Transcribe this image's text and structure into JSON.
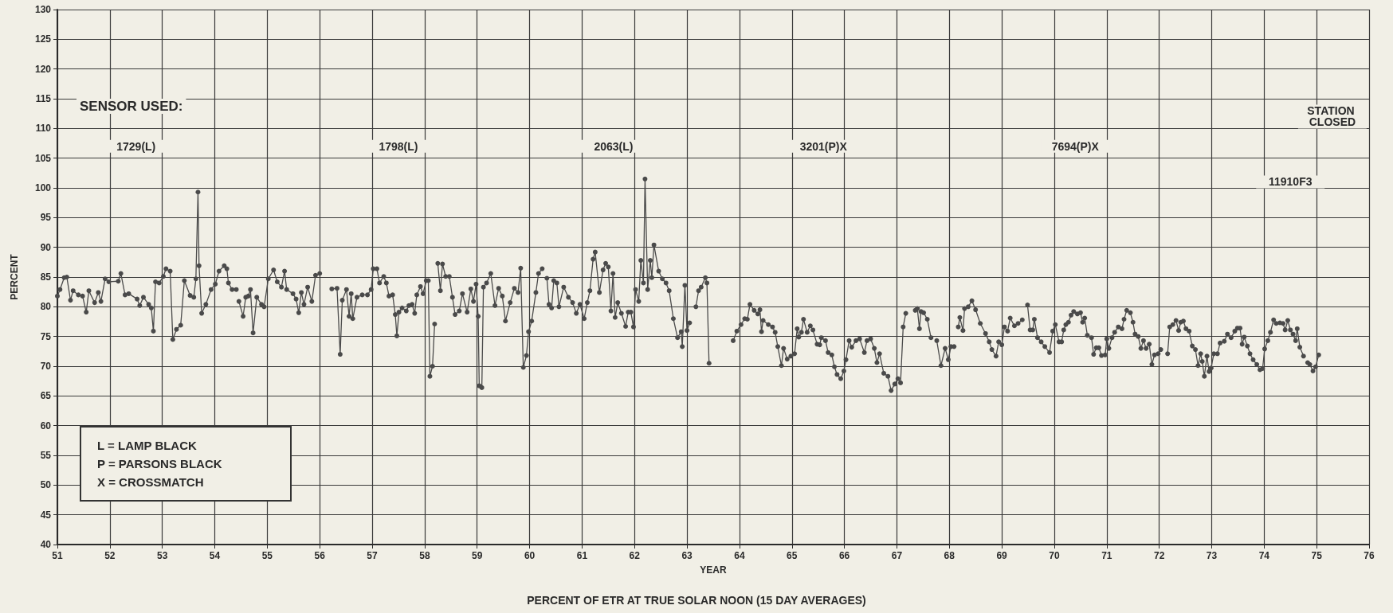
{
  "chart_data": {
    "type": "line",
    "title": "PERCENT OF ETR AT TRUE SOLAR NOON (15 DAY AVERAGES)",
    "xlabel": "YEAR",
    "ylabel": "PERCENT",
    "xlim": [
      51,
      76
    ],
    "xticks": [
      51,
      52,
      53,
      54,
      55,
      56,
      57,
      58,
      59,
      60,
      61,
      62,
      63,
      64,
      65,
      66,
      67,
      68,
      69,
      70,
      71,
      72,
      73,
      74,
      75,
      76
    ],
    "ylim": [
      40,
      130
    ],
    "yticks": [
      40,
      45,
      50,
      55,
      60,
      65,
      70,
      75,
      80,
      85,
      90,
      95,
      100,
      105,
      110,
      115,
      120,
      125,
      130
    ],
    "grid": true,
    "marker": "circle",
    "line_style": "solid",
    "annotations": [
      "SENSOR USED:",
      "L = LAMP BLACK",
      "P = PARSONS BLACK",
      "X = CROSSMATCH",
      "1729(L)",
      "1798(L)",
      "2063(L)",
      "3201(P)X",
      "7694(P)X",
      "11910F3",
      "STATION CLOSED"
    ],
    "series": [
      {
        "color": "#4a4a4a",
        "x": [
          51.0,
          51.05,
          51.13,
          51.18,
          51.25,
          51.3,
          51.4,
          51.48,
          51.55,
          51.6,
          51.71,
          51.78,
          51.83,
          51.91,
          51.98,
          52.16,
          52.21,
          52.29,
          52.36,
          52.52,
          52.57,
          52.64,
          52.74,
          52.79,
          52.83,
          52.87,
          52.94,
          53.02,
          53.07,
          53.15,
          53.2,
          53.27,
          53.35,
          53.42,
          53.53,
          53.6,
          53.64,
          53.68,
          53.7,
          53.75,
          53.83,
          53.93,
          54.01,
          54.08,
          54.18,
          54.23,
          54.26,
          54.33,
          54.41,
          54.43,
          54.46,
          54.54,
          54.59,
          54.64,
          54.68,
          54.73,
          54.8,
          54.89,
          54.94,
          55.02,
          55.12,
          55.19,
          55.27,
          55.33,
          55.37,
          55.49,
          55.55,
          55.6,
          55.65,
          55.7,
          55.77,
          55.85,
          55.92,
          56.0,
          56.1,
          56.23,
          56.33,
          56.39,
          56.43,
          56.51,
          56.56,
          56.6,
          56.63,
          56.71,
          56.81,
          56.91,
          56.98,
          57.02,
          57.09,
          57.14,
          57.22,
          57.27,
          57.32,
          57.39,
          57.44,
          57.47,
          57.51,
          57.57,
          57.65,
          57.7,
          57.76,
          57.81,
          57.85,
          57.92,
          57.97,
          58.03,
          58.07,
          58.1,
          58.15,
          58.19,
          58.22,
          58.25,
          58.3,
          58.34,
          58.4,
          58.47,
          58.53,
          58.58,
          58.66,
          58.72,
          58.81,
          58.88,
          58.93,
          58.98,
          59.02,
          59.04,
          59.09,
          59.12,
          59.18,
          59.26,
          59.34,
          59.41,
          59.48,
          59.54,
          59.63,
          59.71,
          59.78,
          59.83,
          59.88,
          59.94,
          59.98,
          60.04,
          60.12,
          60.17,
          60.24,
          60.28,
          60.33,
          60.37,
          60.42,
          60.46,
          60.52,
          60.56,
          60.65,
          60.74,
          60.82,
          60.89,
          60.96,
          61.04,
          61.1,
          61.15,
          61.21,
          61.25,
          61.33,
          61.4,
          61.45,
          61.5,
          61.55,
          61.59,
          61.63,
          61.68,
          61.75,
          61.83,
          61.88,
          61.93,
          61.98,
          62.02,
          62.08,
          62.12,
          62.17,
          62.2,
          62.25,
          62.3,
          62.33,
          62.37,
          62.46,
          62.53,
          62.6,
          62.66,
          62.74,
          62.82,
          62.89,
          62.91,
          62.96,
          63.0,
          63.05,
          63.1,
          63.17,
          63.22,
          63.27,
          63.35,
          63.38,
          63.42,
          63.65,
          63.88,
          63.95,
          64.03,
          64.1,
          64.15,
          64.2,
          64.28,
          64.35,
          64.39,
          64.42,
          64.45,
          64.55,
          64.63,
          64.68,
          64.73,
          64.8,
          64.84,
          64.91,
          64.98,
          65.05,
          65.1,
          65.13,
          65.18,
          65.22,
          65.29,
          65.35,
          65.4,
          65.48,
          65.53,
          65.56,
          65.64,
          65.69,
          65.76,
          65.81,
          65.86,
          65.93,
          65.99,
          66.03,
          66.09,
          66.14,
          66.22,
          66.29,
          66.38,
          66.43,
          66.5,
          66.57,
          66.62,
          66.67,
          66.75,
          66.83,
          66.89,
          66.96,
          67.02,
          67.07,
          67.12,
          67.17,
          67.26,
          67.35,
          67.39,
          67.43,
          67.46,
          67.51,
          67.58,
          67.65,
          67.7,
          67.76,
          67.84,
          67.92,
          67.98,
          68.03,
          68.09,
          68.13,
          68.17,
          68.2,
          68.26,
          68.29,
          68.36,
          68.43,
          68.5,
          68.59,
          68.69,
          68.76,
          68.81,
          68.89,
          68.94,
          69.0,
          69.05,
          69.11,
          69.16,
          69.24,
          69.31,
          69.39,
          69.44,
          69.49,
          69.54,
          69.59,
          69.62,
          69.68,
          69.75,
          69.82,
          69.91,
          69.97,
          70.02,
          70.09,
          70.14,
          70.18,
          70.22,
          70.27,
          70.32,
          70.37,
          70.44,
          70.5,
          70.54,
          70.58,
          70.63,
          70.71,
          70.75,
          70.8,
          70.85,
          70.9,
          70.97,
          71.0,
          71.04,
          71.1,
          71.15,
          71.22,
          71.29,
          71.33,
          71.38,
          71.45,
          71.5,
          71.54,
          71.6,
          71.65,
          71.7,
          71.75,
          71.81,
          71.86,
          71.91,
          71.98,
          72.03,
          72.1,
          72.16,
          72.2,
          72.26,
          72.32,
          72.37,
          72.41,
          72.46,
          72.51,
          72.57,
          72.63,
          72.69,
          72.74,
          72.79,
          72.82,
          72.86,
          72.91,
          72.95,
          72.99,
          73.04,
          73.11,
          73.16,
          73.24,
          73.3,
          73.37,
          73.44,
          73.49,
          73.54,
          73.58,
          73.62,
          73.68,
          73.73,
          73.79,
          73.86,
          73.92,
          73.97,
          74.01,
          74.07,
          74.12,
          74.18,
          74.23,
          74.3,
          74.36,
          74.4,
          74.45,
          74.5,
          74.55,
          74.6,
          74.63,
          74.68,
          74.75,
          74.79,
          74.83,
          74.87,
          74.93,
          74.98,
          75.04
        ],
        "values": [
          81.8,
          82.9,
          84.9,
          85,
          81.1,
          82.7,
          82,
          81.8,
          79.1,
          82.7,
          80.7,
          82.4,
          80.9,
          84.7,
          84.2,
          84.3,
          85.6,
          82,
          82.2,
          81.3,
          80.2,
          81.6,
          80.4,
          79.8,
          75.9,
          84.2,
          84,
          85.1,
          86.4,
          86,
          74.5,
          76.2,
          76.9,
          84.4,
          81.9,
          81.6,
          84.7,
          99.3,
          86.9,
          78.9,
          80.4,
          82.9,
          83.8,
          86,
          86.9,
          86.4,
          84,
          82.9,
          82.9,
          null,
          80.9,
          78.4,
          81.6,
          81.8,
          82.9,
          75.6,
          81.6,
          80.4,
          80,
          84.7,
          86.2,
          84.2,
          83.3,
          86,
          82.9,
          82.2,
          81.3,
          79,
          82.4,
          80.4,
          83.3,
          80.9,
          85.3,
          85.6,
          null,
          83,
          83.1,
          72,
          81.1,
          82.9,
          78.4,
          82.2,
          78,
          81.6,
          82,
          82,
          82.9,
          86.4,
          86.4,
          84,
          85.1,
          84,
          81.8,
          82,
          78.7,
          75.1,
          79.1,
          79.8,
          79.3,
          80.2,
          80.4,
          78.9,
          82,
          83.4,
          82.2,
          84.4,
          84.4,
          68.3,
          70,
          77.1,
          null,
          87.3,
          82.7,
          87.2,
          85.1,
          85.1,
          81.6,
          78.7,
          79.3,
          82.2,
          79.1,
          83,
          80.9,
          83.8,
          78.4,
          66.7,
          66.4,
          83.3,
          84,
          85.6,
          80.2,
          83.1,
          81.8,
          77.6,
          80.7,
          83.1,
          82.4,
          86.5,
          69.8,
          71.8,
          75.8,
          77.6,
          82.4,
          85.6,
          86.4,
          null,
          84.8,
          80.4,
          79.8,
          84.4,
          84,
          80,
          83.3,
          81.6,
          80.7,
          78.9,
          80.4,
          78,
          80.7,
          82.7,
          88,
          89.2,
          82.4,
          86.2,
          87.3,
          86.7,
          79.3,
          85.6,
          78.2,
          80.7,
          78.9,
          76.7,
          79.1,
          79.1,
          76.6,
          82.9,
          80.9,
          87.8,
          84,
          101.5,
          82.9,
          87.8,
          84.9,
          90.4,
          86,
          84.7,
          84,
          82.7,
          78,
          74.8,
          75.8,
          73.3,
          83.6,
          76,
          77.3,
          null,
          80,
          82.7,
          83.3,
          84.9,
          84,
          70.5,
          null,
          74.3,
          75.9,
          77,
          78,
          77.9,
          80.4,
          79.4,
          78.8,
          79.5,
          75.8,
          77.7,
          77,
          76.6,
          75.7,
          73.3,
          70.1,
          73,
          71.2,
          71.7,
          72.1,
          76.3,
          74.9,
          75.7,
          77.9,
          75.7,
          76.8,
          76.1,
          73.7,
          73.6,
          74.8,
          74.3,
          72.3,
          71.9,
          69.9,
          68.6,
          67.9,
          69.2,
          71.1,
          74.3,
          73.2,
          74.3,
          74.6,
          72.3,
          74.3,
          74.6,
          73,
          70.6,
          72.1,
          68.8,
          68.3,
          65.9,
          67,
          67.9,
          67.2,
          76.6,
          78.9,
          null,
          79.4,
          79.7,
          76.3,
          79.2,
          79,
          77.9,
          74.8,
          null,
          74.3,
          70.1,
          73,
          71.1,
          73.3,
          73.3,
          null,
          76.6,
          78.2,
          76,
          79.7,
          80,
          81,
          79.5,
          77.2,
          75.5,
          74.1,
          72.8,
          71.7,
          74.1,
          73.6,
          76.6,
          75.9,
          78.1,
          76.8,
          77.2,
          77.8,
          null,
          80.3,
          76.1,
          76.1,
          77.9,
          74.8,
          74.1,
          73.3,
          72.3,
          75.9,
          77,
          74.1,
          74.1,
          76.1,
          77,
          77.4,
          78.6,
          79.2,
          78.8,
          79,
          77.4,
          78.1,
          75.2,
          74.8,
          72,
          73.1,
          73.1,
          71.8,
          71.9,
          74.6,
          73,
          74.8,
          75.7,
          76.6,
          76.3,
          77.9,
          79.4,
          79,
          77.4,
          75.4,
          75,
          73,
          74.3,
          73,
          73.7,
          70.3,
          71.9,
          72.1,
          72.8,
          null,
          72.1,
          76.6,
          77,
          77.7,
          76,
          77.4,
          77.6,
          76.3,
          75.9,
          73.4,
          72.8,
          70.1,
          72.1,
          70.8,
          68.3,
          71.7,
          69.1,
          69.7,
          72.1,
          72.1,
          73.9,
          74.2,
          75.4,
          74.8,
          75.9,
          76.4,
          76.4,
          73.7,
          74.9,
          73.4,
          72.1,
          71.1,
          70.3,
          69.4,
          69.6,
          72.9,
          74.3,
          75.7,
          77.8,
          77.2,
          77.3,
          77.2,
          76.1,
          77.7,
          76.1,
          75.4,
          74.3,
          76.3,
          73.2,
          71.7,
          null,
          70.6,
          70.3,
          69.2,
          69.9,
          71.9
        ]
      }
    ]
  }
}
